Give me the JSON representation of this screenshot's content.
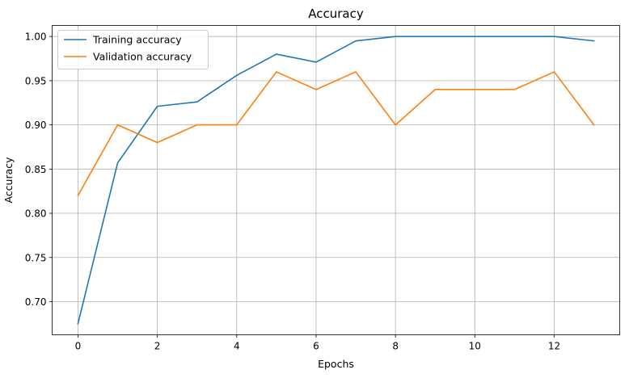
{
  "chart_data": {
    "type": "line",
    "title": "Accuracy",
    "xlabel": "Epochs",
    "ylabel": "Accuracy",
    "xlim": [
      -0.65,
      13.65
    ],
    "ylim": [
      0.6625,
      1.0125
    ],
    "x_ticks": [
      0,
      2,
      4,
      6,
      8,
      10,
      12
    ],
    "y_ticks": [
      0.7,
      0.75,
      0.8,
      0.85,
      0.9,
      0.95,
      1.0
    ],
    "grid": true,
    "legend_position": "top-left",
    "x": [
      0,
      1,
      2,
      3,
      4,
      5,
      6,
      7,
      8,
      9,
      10,
      11,
      12,
      13
    ],
    "series": [
      {
        "name": "Training accuracy",
        "color": "#1f77b4",
        "values": [
          0.675,
          0.857,
          0.921,
          0.926,
          0.956,
          0.98,
          0.971,
          0.995,
          1.0,
          1.0,
          1.0,
          1.0,
          1.0,
          0.995
        ]
      },
      {
        "name": "Validation accuracy",
        "color": "#ff7f0e",
        "values": [
          0.82,
          0.9,
          0.88,
          0.9,
          0.9,
          0.96,
          0.94,
          0.96,
          0.9,
          0.94,
          0.94,
          0.94,
          0.96,
          0.9
        ]
      }
    ]
  }
}
